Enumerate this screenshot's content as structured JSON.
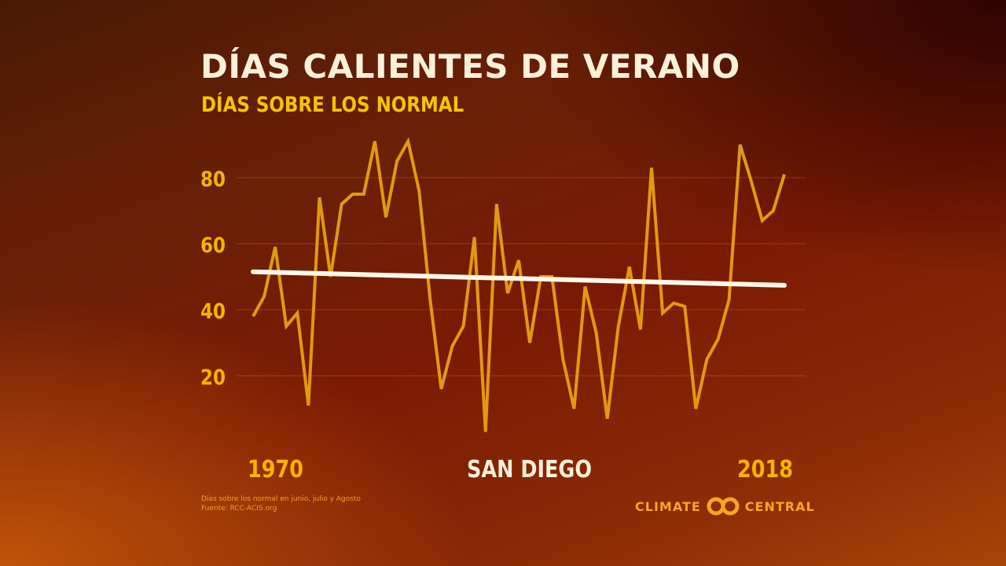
{
  "header": {
    "title": "DÍAS CALIENTES DE VERANO",
    "subtitle": "DÍAS SOBRE LOS NORMAL"
  },
  "chart_data": {
    "type": "line",
    "x": [
      1970,
      1971,
      1972,
      1973,
      1974,
      1975,
      1976,
      1977,
      1978,
      1979,
      1980,
      1981,
      1982,
      1983,
      1984,
      1985,
      1986,
      1987,
      1988,
      1989,
      1990,
      1991,
      1992,
      1993,
      1994,
      1995,
      1996,
      1997,
      1998,
      1999,
      2000,
      2001,
      2002,
      2003,
      2004,
      2005,
      2006,
      2007,
      2008,
      2009,
      2010,
      2011,
      2012,
      2013,
      2014,
      2015,
      2016,
      2017,
      2018
    ],
    "series": [
      {
        "values": [
          38,
          44,
          59,
          35,
          39,
          11,
          74,
          50,
          72,
          75,
          75,
          91,
          68,
          85,
          91,
          76,
          43,
          16,
          29,
          35,
          62,
          3,
          72,
          45,
          55,
          30,
          50,
          50,
          25,
          10,
          47,
          33,
          7,
          35,
          53,
          34,
          83,
          39,
          42,
          41,
          10,
          25,
          31,
          43,
          90,
          79,
          67,
          70,
          81
        ],
        "color": "#e09a10"
      },
      {
        "type": "trend",
        "values_at_ends": [
          51.5,
          47.4
        ],
        "color": "#fff8e8"
      }
    ],
    "yticks": [
      20,
      40,
      60,
      80
    ],
    "ylim": [
      0,
      95
    ],
    "xlim": [
      1970,
      2018
    ],
    "x_tick_labels": [
      "1970",
      "2018"
    ],
    "grid": true,
    "location": "SAN DIEGO"
  },
  "footer": {
    "note": "Días sobre los normal en junio, julio y Agosto",
    "source": "Fuente: RCC-ACIS.org",
    "logo_left": "CLIMATE",
    "logo_right": "CENTRAL"
  },
  "colors": {
    "title": "#fbf0d8",
    "accent": "#f5c400",
    "line": "#e09a10"
  }
}
